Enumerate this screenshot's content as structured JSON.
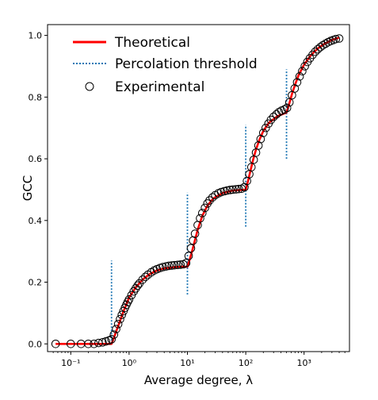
{
  "chart_data": {
    "type": "line",
    "title": "",
    "xlabel": "Average degree, λ",
    "ylabel": "GCC",
    "x_scale": "log",
    "xlim": [
      0.04,
      6000
    ],
    "ylim": [
      -0.025,
      1.035
    ],
    "grid": false,
    "legend_position": "top-left",
    "x_ticks": [
      {
        "value": 0.1,
        "label": "10⁻¹"
      },
      {
        "value": 1,
        "label": "10⁰"
      },
      {
        "value": 10,
        "label": "10¹"
      },
      {
        "value": 100,
        "label": "10²"
      },
      {
        "value": 1000,
        "label": "10³"
      }
    ],
    "y_ticks": [
      {
        "value": 0.0,
        "label": "0.0"
      },
      {
        "value": 0.2,
        "label": "0.2"
      },
      {
        "value": 0.4,
        "label": "0.4"
      },
      {
        "value": 0.6,
        "label": "0.6"
      },
      {
        "value": 0.8,
        "label": "0.8"
      },
      {
        "value": 1.0,
        "label": "1.0"
      }
    ],
    "series": [
      {
        "name": "Theoretical",
        "kind": "line",
        "color": "#ff0000",
        "x": [
          0.055,
          0.5,
          0.55,
          0.6,
          0.7,
          0.8,
          1.0,
          1.3,
          1.7,
          2.2,
          3.0,
          4.0,
          6.0,
          8.0,
          10.0,
          11.0,
          12.0,
          13.5,
          15.0,
          18.0,
          22.0,
          28.0,
          40.0,
          60.0,
          100.0,
          110.0,
          120.0,
          135.0,
          150.0,
          170.0,
          200.0,
          250.0,
          350.0,
          500.0,
          550.0,
          620.0,
          700.0,
          800.0,
          1000.0,
          1300.0,
          1700.0,
          2200.0,
          3000.0,
          4000.0
        ],
        "y": [
          0.0,
          0.0,
          0.02,
          0.04,
          0.075,
          0.105,
          0.15,
          0.183,
          0.208,
          0.225,
          0.238,
          0.245,
          0.249,
          0.25,
          0.25,
          0.275,
          0.3,
          0.337,
          0.37,
          0.415,
          0.448,
          0.472,
          0.489,
          0.497,
          0.5,
          0.53,
          0.56,
          0.6,
          0.63,
          0.66,
          0.69,
          0.717,
          0.738,
          0.75,
          0.775,
          0.81,
          0.84,
          0.87,
          0.905,
          0.935,
          0.957,
          0.972,
          0.985,
          0.993
        ]
      },
      {
        "name": "Percolation threshold",
        "kind": "vlines",
        "color": "#1f77b4",
        "lines": [
          {
            "x": 0.5,
            "y0": 0.0,
            "y1": 0.27
          },
          {
            "x": 10.0,
            "y0": 0.16,
            "y1": 0.49
          },
          {
            "x": 100.0,
            "y0": 0.38,
            "y1": 0.71
          },
          {
            "x": 500.0,
            "y0": 0.6,
            "y1": 0.89
          }
        ]
      },
      {
        "name": "Experimental",
        "kind": "scatter",
        "color": "#000000",
        "x": [
          0.055,
          0.1,
          0.15,
          0.2,
          0.25,
          0.3,
          0.35,
          0.4,
          0.45,
          0.5,
          0.55,
          0.6,
          0.65,
          0.7,
          0.75,
          0.8,
          0.85,
          0.9,
          0.95,
          1.0,
          1.1,
          1.2,
          1.3,
          1.4,
          1.5,
          1.7,
          1.9,
          2.1,
          2.4,
          2.7,
          3.0,
          3.4,
          3.8,
          4.3,
          4.8,
          5.4,
          6.0,
          6.8,
          7.6,
          8.5,
          9.5,
          10.5,
          11.5,
          12.5,
          13.5,
          15.0,
          16.5,
          18.0,
          20.0,
          22.0,
          24.0,
          27.0,
          30.0,
          34.0,
          38.0,
          43.0,
          48.0,
          54.0,
          60.0,
          68.0,
          76.0,
          85.0,
          95.0,
          105.0,
          115.0,
          125.0,
          137.0,
          150.0,
          165.0,
          180.0,
          200.0,
          220.0,
          245.0,
          270.0,
          300.0,
          335.0,
          370.0,
          410.0,
          460.0,
          510.0,
          560.0,
          620.0,
          690.0,
          760.0,
          840.0,
          930.0,
          1030.0,
          1140.0,
          1260.0,
          1400.0,
          1550.0,
          1720.0,
          1900.0,
          2100.0,
          2330.0,
          2580.0,
          2860.0,
          3170.0,
          3500.0,
          4000.0
        ],
        "y": [
          0.0,
          0.0,
          0.0,
          0.0,
          0.0,
          0.003,
          0.005,
          0.008,
          0.011,
          0.015,
          0.03,
          0.048,
          0.064,
          0.08,
          0.094,
          0.106,
          0.117,
          0.127,
          0.136,
          0.144,
          0.158,
          0.17,
          0.18,
          0.189,
          0.196,
          0.208,
          0.217,
          0.224,
          0.232,
          0.238,
          0.242,
          0.246,
          0.249,
          0.251,
          0.253,
          0.254,
          0.255,
          0.256,
          0.257,
          0.258,
          0.262,
          0.285,
          0.31,
          0.335,
          0.357,
          0.385,
          0.407,
          0.424,
          0.441,
          0.455,
          0.465,
          0.475,
          0.482,
          0.488,
          0.492,
          0.495,
          0.497,
          0.499,
          0.5,
          0.501,
          0.502,
          0.503,
          0.508,
          0.528,
          0.55,
          0.573,
          0.597,
          0.62,
          0.643,
          0.664,
          0.684,
          0.7,
          0.714,
          0.726,
          0.736,
          0.744,
          0.751,
          0.756,
          0.76,
          0.765,
          0.783,
          0.806,
          0.828,
          0.848,
          0.867,
          0.884,
          0.9,
          0.914,
          0.926,
          0.937,
          0.947,
          0.955,
          0.962,
          0.968,
          0.973,
          0.978,
          0.982,
          0.985,
          0.988,
          0.99
        ]
      }
    ]
  }
}
